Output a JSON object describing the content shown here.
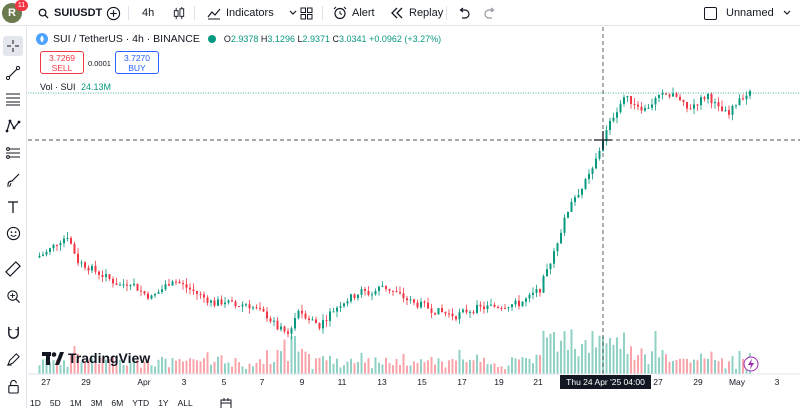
{
  "toolbar": {
    "avatar_letter": "R",
    "badge": "11",
    "symbol": "SUIUSDT",
    "interval": "4h",
    "indicators": "Indicators",
    "alert": "Alert",
    "replay": "Replay",
    "layout_name": "Unnamed"
  },
  "legend": {
    "title": "SUI / TetherUS · 4h · BINANCE",
    "open_label": "O",
    "open": "2.9378",
    "high_label": "H",
    "high": "3.1296",
    "low_label": "L",
    "low": "2.9371",
    "close_label": "C",
    "close": "3.0341",
    "change": "+0.0962 (+3.27%)"
  },
  "trade": {
    "sell_price": "3.7269",
    "sell_label": "SELL",
    "spread": "0.0001",
    "buy_price": "3.7270",
    "buy_label": "BUY"
  },
  "volume": {
    "label": "Vol · SUI",
    "value": "24.13M"
  },
  "xaxis": {
    "labels": [
      "27",
      "29",
      "Apr",
      "3",
      "5",
      "7",
      "9",
      "11",
      "13",
      "15",
      "17",
      "19",
      "21",
      "27",
      "29",
      "May",
      "3"
    ],
    "crosshair_label": "Thu 24 Apr '25   04:00"
  },
  "timeframes": [
    "1D",
    "5D",
    "1M",
    "3M",
    "6M",
    "YTD",
    "1Y",
    "ALL"
  ],
  "watermark": "TradingView",
  "colors": {
    "up": "#089981",
    "down": "#f23645",
    "accent": "#2962ff"
  },
  "chart_data": {
    "type": "candlestick",
    "title": "SUI / TetherUS · 4h · BINANCE",
    "y_estimated_range": [
      1.7,
      3.8
    ],
    "x_range": [
      "27 Mar 2025",
      "2 May 2025"
    ],
    "close_trace": [
      2.38,
      2.42,
      2.5,
      2.56,
      2.35,
      2.3,
      2.25,
      2.2,
      2.15,
      2.18,
      2.1,
      2.05,
      2.12,
      2.2,
      2.15,
      2.1,
      2.05,
      2.0,
      2.02,
      1.98,
      2.0,
      1.95,
      1.9,
      1.8,
      1.75,
      1.95,
      1.88,
      1.82,
      1.92,
      2.0,
      2.05,
      2.1,
      2.08,
      2.15,
      2.1,
      2.05,
      2.0,
      1.98,
      1.94,
      1.92,
      1.9,
      1.94,
      1.96,
      1.97,
      1.98,
      1.99,
      2.0,
      2.05,
      2.12,
      2.35,
      2.6,
      2.85,
      2.95,
      3.1,
      3.35,
      3.55,
      3.7,
      3.65,
      3.6,
      3.68,
      3.72,
      3.7,
      3.6,
      3.66,
      3.72,
      3.6,
      3.55,
      3.7,
      3.73
    ]
  }
}
